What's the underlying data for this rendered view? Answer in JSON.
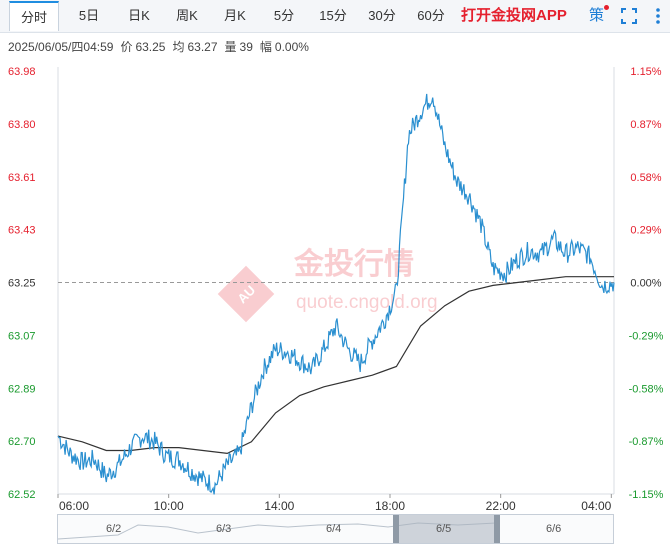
{
  "toolbar": {
    "tabs": [
      {
        "label": "分时",
        "active": true
      },
      {
        "label": "5日",
        "active": false
      },
      {
        "label": "日K",
        "active": false
      },
      {
        "label": "周K",
        "active": false
      },
      {
        "label": "月K",
        "active": false
      },
      {
        "label": "5分",
        "active": false
      },
      {
        "label": "15分",
        "active": false
      },
      {
        "label": "30分",
        "active": false
      },
      {
        "label": "60分",
        "active": false
      }
    ],
    "app_link": "打开金投网APP",
    "strategy_label": "策",
    "icons": [
      "fullscreen-icon",
      "more-icon"
    ]
  },
  "info_bar": {
    "datetime": "2025/06/05/四04:59",
    "price_label": "价",
    "price": "63.25",
    "avg_label": "均",
    "avg": "63.27",
    "volume_label": "量",
    "volume": "39",
    "change_label": "幅",
    "change": "0.00%"
  },
  "watermark": {
    "brand": "金投行情",
    "site": "quote.cngold.org",
    "badge": "AU"
  },
  "colors": {
    "price_line": "#2a8fd0",
    "avg_line": "#333333",
    "up": "#e5202e",
    "down": "#1a9a2e",
    "neutral": "#333333"
  },
  "chart_data": {
    "type": "line",
    "x_ticks": [
      "06:00",
      "10:00",
      "14:00",
      "18:00",
      "22:00",
      "04:00"
    ],
    "y_ticks": [
      "63.98",
      "63.80",
      "63.61",
      "63.43",
      "63.25",
      "63.07",
      "62.89",
      "62.70",
      "62.52"
    ],
    "y_ticks_pct": [
      "1.15%",
      "0.87%",
      "0.58%",
      "0.29%",
      "0.00%",
      "-0.29%",
      "-0.58%",
      "-0.87%",
      "-1.15%"
    ],
    "ylim": [
      62.52,
      63.98
    ],
    "base_price": 63.25,
    "x_range_hours": [
      6,
      29
    ],
    "series": [
      {
        "role": "price",
        "x": [
          6.0,
          6.5,
          7.0,
          7.5,
          8.0,
          8.5,
          9.0,
          9.5,
          10.0,
          10.5,
          11.0,
          11.5,
          12.0,
          12.5,
          13.0,
          13.5,
          14.0,
          14.5,
          15.0,
          15.5,
          16.0,
          16.5,
          17.0,
          17.5,
          18.0,
          18.5,
          19.0,
          19.5,
          20.0,
          20.5,
          21.0,
          21.5,
          22.0,
          22.5,
          23.0,
          23.5,
          24.0,
          24.5,
          25.0,
          25.5,
          26.0,
          26.5,
          27.0,
          27.5,
          28.0,
          28.5,
          29.0
        ],
        "y": [
          62.72,
          62.66,
          62.63,
          62.64,
          62.58,
          62.62,
          62.68,
          62.72,
          62.7,
          62.65,
          62.64,
          62.6,
          62.57,
          62.55,
          62.62,
          62.66,
          62.82,
          62.95,
          63.02,
          63.01,
          62.98,
          62.95,
          63.02,
          63.1,
          63.02,
          62.97,
          63.05,
          63.12,
          63.22,
          63.76,
          63.84,
          63.9,
          63.72,
          63.6,
          63.55,
          63.45,
          63.3,
          63.28,
          63.33,
          63.36,
          63.35,
          63.4,
          63.35,
          63.37,
          63.34,
          63.24,
          63.25
        ]
      },
      {
        "role": "average",
        "x": [
          6.0,
          7.0,
          8.0,
          9.0,
          10.0,
          11.0,
          12.0,
          13.0,
          14.0,
          15.0,
          16.0,
          17.0,
          18.0,
          19.0,
          20.0,
          20.5,
          21.0,
          22.0,
          23.0,
          24.0,
          25.0,
          26.0,
          27.0,
          28.0,
          29.0
        ],
        "y": [
          62.72,
          62.7,
          62.67,
          62.67,
          62.68,
          62.68,
          62.67,
          62.66,
          62.7,
          62.8,
          62.86,
          62.89,
          62.91,
          62.93,
          62.96,
          63.03,
          63.1,
          63.17,
          63.22,
          63.24,
          63.25,
          63.26,
          63.27,
          63.27,
          63.27
        ]
      }
    ]
  },
  "navigator": {
    "labels": [
      "6/2",
      "6/3",
      "6/4",
      "6/5",
      "6/6"
    ]
  }
}
